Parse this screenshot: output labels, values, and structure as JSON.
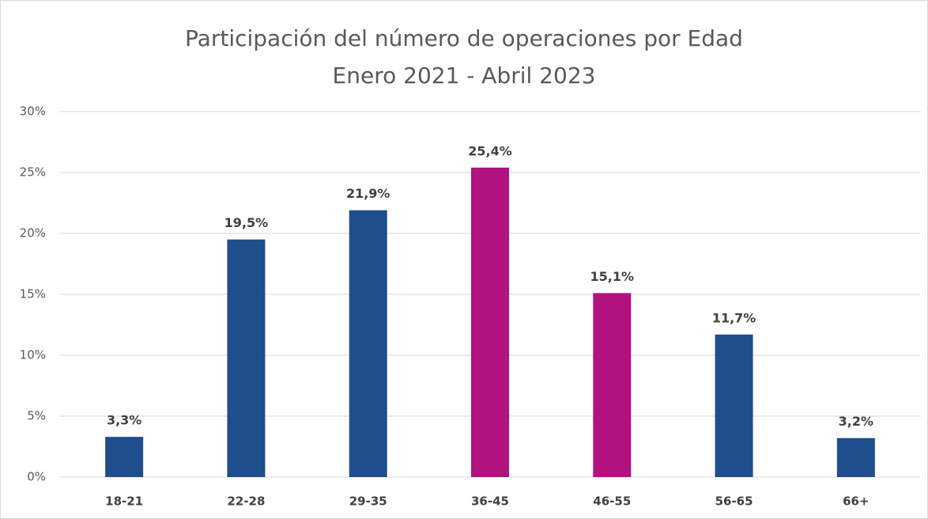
{
  "chart_data": {
    "type": "bar",
    "title": "Participación del número de operaciones por Edad",
    "subtitle": "Enero 2021 - Abril 2023",
    "categories": [
      "18-21",
      "22-28",
      "29-35",
      "36-45",
      "46-55",
      "56-65",
      "66+"
    ],
    "values": [
      3.3,
      19.5,
      21.9,
      25.4,
      15.1,
      11.7,
      3.2
    ],
    "value_labels": [
      "3,3%",
      "19,5%",
      "21,9%",
      "25,4%",
      "15,1%",
      "11,7%",
      "3,2%"
    ],
    "colors": [
      "#1f4e8c",
      "#1f4e8c",
      "#1f4e8c",
      "#b0127e",
      "#b0127e",
      "#1f4e8c",
      "#1f4e8c"
    ],
    "ylim": [
      0,
      30
    ],
    "yticks": [
      {
        "value": 0,
        "label": "0%"
      },
      {
        "value": 5,
        "label": "5%"
      },
      {
        "value": 10,
        "label": "10%"
      },
      {
        "value": 15,
        "label": "15%"
      },
      {
        "value": 20,
        "label": "20%"
      },
      {
        "value": 25,
        "label": "25%"
      },
      {
        "value": 30,
        "label": "30%"
      }
    ],
    "grid": true
  }
}
